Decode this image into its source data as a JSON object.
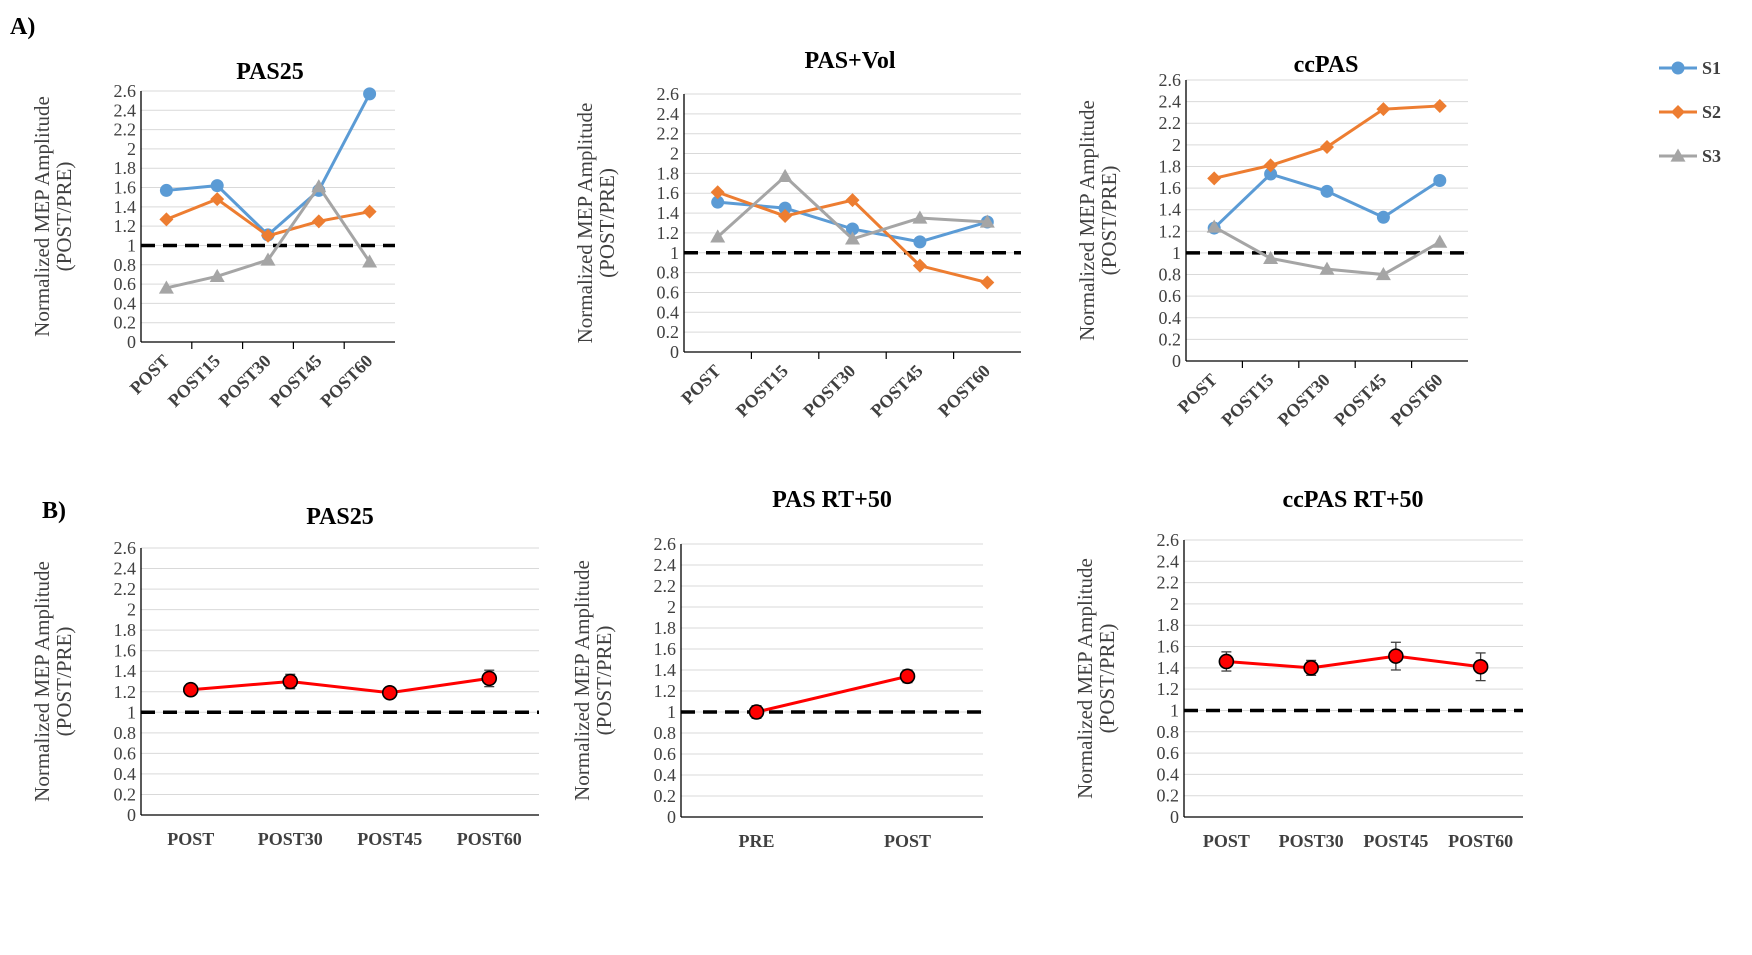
{
  "panel_labels": {
    "a": "A)",
    "b": "B)"
  },
  "colors": {
    "S1": "#5b9bd5",
    "S2": "#ed7d31",
    "S3": "#a5a5a5",
    "mean": "#ff0000",
    "grid": "#d9d9d9",
    "axis": "#000000"
  },
  "legend": {
    "placement": "right of panel A ccPAS",
    "entries": [
      "S1",
      "S2",
      "S3"
    ]
  },
  "chart_data": [
    {
      "id": "a_pas25",
      "type": "line",
      "title": "PAS25",
      "ylabel": "Normalized MEP Amplitude (POST/PRE)",
      "ylabel_lines": [
        "Normalized MEP Amplitude",
        "(POST/PRE)"
      ],
      "ylim": [
        0,
        2.6
      ],
      "ytick_labels": [
        "0",
        "0.2",
        "0.4",
        "0.6",
        "0.8",
        "1",
        "1.2",
        "1.4",
        "1.6",
        "1.8",
        "2",
        "2.2",
        "2.4",
        "2.6"
      ],
      "xtick_rotation": "rotated",
      "reference_line": 1,
      "grid": true,
      "categories": [
        "POST",
        "POST15",
        "POST30",
        "POST45",
        "POST60"
      ],
      "series": [
        {
          "name": "S1",
          "marker": "circle",
          "values": [
            1.57,
            1.62,
            1.11,
            1.57,
            2.57
          ]
        },
        {
          "name": "S2",
          "marker": "diamond",
          "values": [
            1.27,
            1.48,
            1.1,
            1.25,
            1.35
          ]
        },
        {
          "name": "S3",
          "marker": "triangle",
          "values": [
            0.56,
            0.68,
            0.85,
            1.61,
            0.83
          ]
        }
      ]
    },
    {
      "id": "a_pasvol",
      "type": "line",
      "title": "PAS+Vol",
      "ylabel": "Normalized MEP Amplitude (POST/PRE)",
      "ylabel_lines": [
        "Normalized MEP Amplitude",
        "(POST/PRE)"
      ],
      "ylim": [
        0,
        2.6
      ],
      "ytick_labels": [
        "0",
        "0.2",
        "0.4",
        "0.6",
        "0.8",
        "1",
        "1.2",
        "1.4",
        "1.6",
        "1.8",
        "2",
        "2.2",
        "2.4",
        "2.6"
      ],
      "xtick_rotation": "rotated",
      "reference_line": 1,
      "grid": true,
      "categories": [
        "POST",
        "POST15",
        "POST30",
        "POST45",
        "POST60"
      ],
      "series": [
        {
          "name": "S1",
          "marker": "circle",
          "values": [
            1.51,
            1.45,
            1.24,
            1.11,
            1.31
          ]
        },
        {
          "name": "S2",
          "marker": "diamond",
          "values": [
            1.61,
            1.37,
            1.53,
            0.87,
            0.7
          ]
        },
        {
          "name": "S3",
          "marker": "triangle",
          "values": [
            1.16,
            1.77,
            1.14,
            1.35,
            1.31
          ]
        }
      ]
    },
    {
      "id": "a_ccpas",
      "type": "line",
      "title": "ccPAS",
      "ylabel": "Normalized MEP Amplitude (POST/PRE)",
      "ylabel_lines": [
        "Normalized MEP Amplitude",
        "(POST/PRE)"
      ],
      "ylim": [
        0,
        2.6
      ],
      "ytick_labels": [
        "0",
        "0.2",
        "0.4",
        "0.6",
        "0.8",
        "1",
        "1.2",
        "1.4",
        "1.6",
        "1.8",
        "2",
        "2.2",
        "2.4",
        "2.6"
      ],
      "xtick_rotation": "rotated",
      "reference_line": 1,
      "grid": true,
      "categories": [
        "POST",
        "POST15",
        "POST30",
        "POST45",
        "POST60"
      ],
      "series": [
        {
          "name": "S1",
          "marker": "circle",
          "values": [
            1.23,
            1.73,
            1.57,
            1.33,
            1.67
          ]
        },
        {
          "name": "S2",
          "marker": "diamond",
          "values": [
            1.69,
            1.81,
            1.98,
            2.33,
            2.36
          ]
        },
        {
          "name": "S3",
          "marker": "triangle",
          "values": [
            1.24,
            0.95,
            0.85,
            0.8,
            1.1
          ]
        }
      ]
    },
    {
      "id": "b_pas25",
      "type": "line",
      "title": "PAS25",
      "ylabel": "Normalized MEP Amplitude (POST/PRE)",
      "ylabel_lines": [
        "Normalized MEP Amplitude",
        "(POST/PRE)"
      ],
      "ylim": [
        0,
        2.6
      ],
      "ytick_labels": [
        "0",
        "0.2",
        "0.4",
        "0.6",
        "0.8",
        "1",
        "1.2",
        "1.4",
        "1.6",
        "1.8",
        "2",
        "2.2",
        "2.4",
        "2.6"
      ],
      "xtick_rotation": "horizontal",
      "reference_line": 1,
      "grid": true,
      "categories": [
        "POST",
        "POST30",
        "POST45",
        "POST60"
      ],
      "series": [
        {
          "marker": "circle-error",
          "values": [
            1.22,
            1.3,
            1.19,
            1.33
          ],
          "errors": [
            0.04,
            0.07,
            0.05,
            0.08
          ]
        }
      ]
    },
    {
      "id": "b_pasrt50",
      "type": "line",
      "title": "PAS RT+50",
      "ylabel": "Normalized MEP Amplitude (POST/PRE)",
      "ylabel_lines": [
        "Normalized MEP Amplitude",
        "(POST/PRE)"
      ],
      "ylim": [
        0,
        2.6
      ],
      "ytick_labels": [
        "0",
        "0.2",
        "0.4",
        "0.6",
        "0.8",
        "1",
        "1.2",
        "1.4",
        "1.6",
        "1.8",
        "2",
        "2.2",
        "2.4",
        "2.6"
      ],
      "xtick_rotation": "horizontal",
      "reference_line": 1,
      "grid": true,
      "categories": [
        "PRE",
        "POST"
      ],
      "series": [
        {
          "marker": "circle-error",
          "values": [
            1.0,
            1.34
          ],
          "errors": [
            0.06,
            0.06
          ]
        }
      ]
    },
    {
      "id": "b_ccpasrt50",
      "type": "line",
      "title": "ccPAS RT+50",
      "ylabel": "Normalized MEP Amplitude (POST/PRE)",
      "ylabel_lines": [
        "Normalized MEP Amplitude",
        "(POST/PRE)"
      ],
      "ylim": [
        0,
        2.6
      ],
      "ytick_labels": [
        "0",
        "0.2",
        "0.4",
        "0.6",
        "0.8",
        "1",
        "1.2",
        "1.4",
        "1.6",
        "1.8",
        "2",
        "2.2",
        "2.4",
        "2.6"
      ],
      "xtick_rotation": "horizontal",
      "reference_line": 1,
      "grid": true,
      "categories": [
        "POST",
        "POST30",
        "POST45",
        "POST60"
      ],
      "series": [
        {
          "marker": "circle-error",
          "values": [
            1.46,
            1.4,
            1.51,
            1.41
          ],
          "errors": [
            0.09,
            0.07,
            0.13,
            0.13
          ]
        }
      ]
    }
  ]
}
